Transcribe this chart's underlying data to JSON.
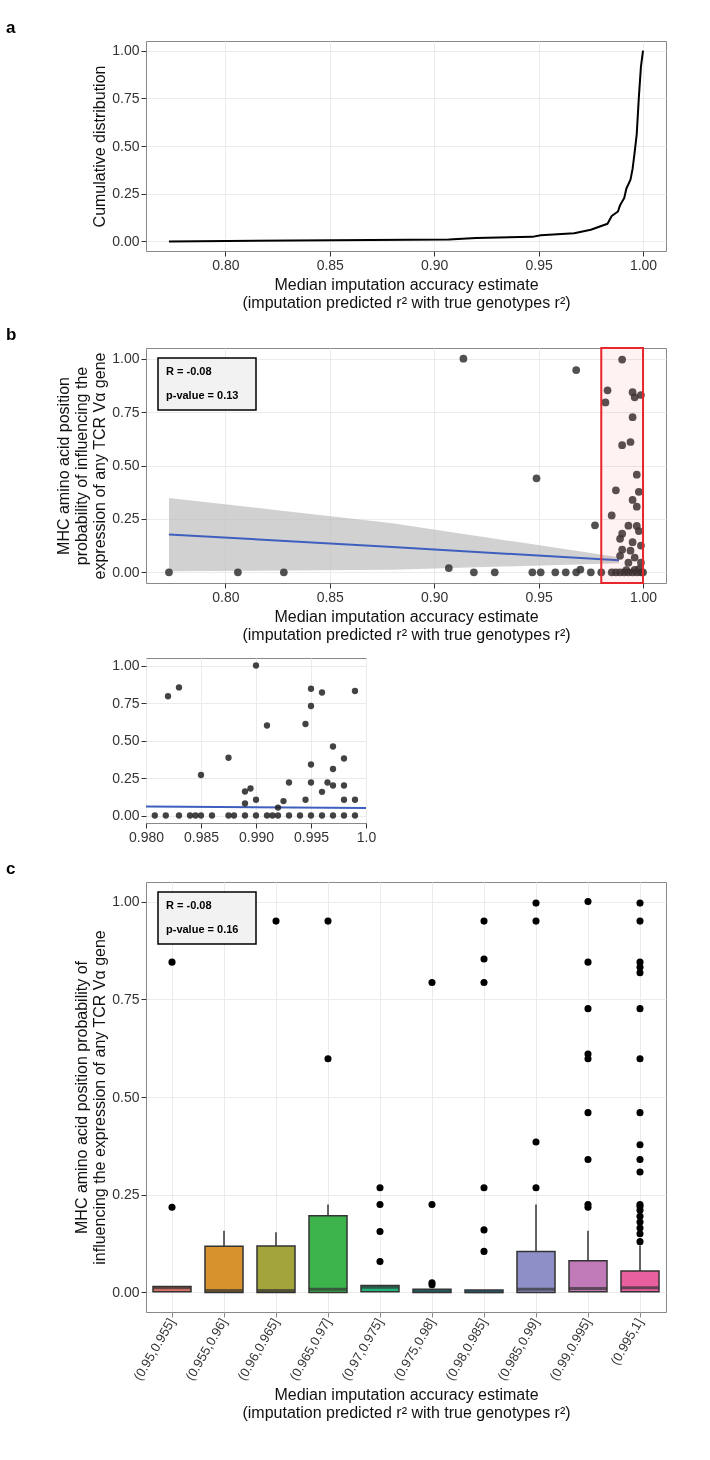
{
  "chart_data": [
    {
      "type": "line",
      "xlabel": "Median imputation accuracy estimate\n(imputation predicted r² with true genotypes r²)",
      "ylabel": "Cumulative distribution",
      "annotations": [
        "a"
      ],
      "grid": true,
      "marker": "none",
      "line_style": "solid",
      "xlim": [
        0.762,
        1.011
      ],
      "ylim": [
        -0.05,
        1.05
      ],
      "xticks": [
        {
          "value": 0.8,
          "label": "0.80"
        },
        {
          "value": 0.85,
          "label": "0.85"
        },
        {
          "value": 0.9,
          "label": "0.90"
        },
        {
          "value": 0.95,
          "label": "0.95"
        },
        {
          "value": 1.0,
          "label": "1.00"
        }
      ],
      "yticks": [
        {
          "value": 0,
          "label": "0.00"
        },
        {
          "value": 0.25,
          "label": "0.25"
        },
        {
          "value": 0.5,
          "label": "0.50"
        },
        {
          "value": 0.75,
          "label": "0.75"
        },
        {
          "value": 1.0,
          "label": "1.00"
        }
      ],
      "series": [
        {
          "color": "#000000",
          "x": [
            0.773,
            0.907,
            0.92,
            0.947,
            0.951,
            0.967,
            0.975,
            0.983,
            0.985,
            0.988,
            0.989,
            0.991,
            0.992,
            0.994,
            0.995,
            0.996,
            0.997,
            0.998,
            0.999,
            1.0
          ],
          "values": [
            0.0,
            0.01,
            0.018,
            0.024,
            0.032,
            0.043,
            0.061,
            0.093,
            0.133,
            0.157,
            0.19,
            0.228,
            0.276,
            0.324,
            0.38,
            0.468,
            0.564,
            0.756,
            0.916,
            1.0
          ]
        }
      ]
    },
    {
      "type": "scatter",
      "xlabel": "Median imputation accuracy estimate\n(imputation predicted r² with true genotypes r²)",
      "ylabel": "MHC amino acid position\nprobability of influencing the\nexpression of any TCR Vα gene",
      "annotations": [
        "b",
        "R = -0.08",
        "p-value = 0.13"
      ],
      "grid": true,
      "xlim": [
        0.762,
        1.011
      ],
      "ylim": [
        -0.05,
        1.05
      ],
      "xticks": [
        {
          "value": 0.8,
          "label": "0.80"
        },
        {
          "value": 0.85,
          "label": "0.85"
        },
        {
          "value": 0.9,
          "label": "0.90"
        },
        {
          "value": 0.95,
          "label": "0.95"
        },
        {
          "value": 1.0,
          "label": "1.00"
        }
      ],
      "yticks": [
        {
          "value": 0,
          "label": "0.00"
        },
        {
          "value": 0.25,
          "label": "0.25"
        },
        {
          "value": 0.5,
          "label": "0.50"
        },
        {
          "value": 0.75,
          "label": "0.75"
        },
        {
          "value": 1.0,
          "label": "1.00"
        }
      ],
      "bands": [
        {
          "axis": "x",
          "from": 0.98,
          "to": 1.0,
          "color": "#e8262b"
        }
      ],
      "series": [
        {
          "type": "line",
          "marker": "none",
          "color": "#3f5fbf",
          "x": [
            0.773,
            0.88,
            0.9885
          ],
          "values": [
            0.177,
            0.119,
            0.056
          ],
          "lower": [
            0.005,
            0.012,
            0.043
          ],
          "upper": [
            0.348,
            0.23,
            0.07
          ]
        },
        {
          "type": "scatter",
          "marker": "circle",
          "color": "#333333",
          "x": [
            0.773,
            0.806,
            0.828,
            0.907,
            0.914,
            0.919,
            0.929,
            0.947,
            0.951,
            0.949,
            0.958,
            0.963,
            0.968,
            0.968,
            0.97,
            0.975,
            0.977,
            0.98,
            0.99,
            0.983,
            0.982,
            0.995,
            0.996,
            0.999,
            0.995,
            0.99,
            0.994,
            0.997,
            0.987,
            0.998,
            0.995,
            0.997,
            0.985,
            0.993,
            0.997,
            0.99,
            0.989,
            0.995,
            0.998,
            0.99,
            0.994,
            0.999,
            0.989,
            0.996,
            0.993,
            0.999,
            0.985,
            0.987,
            0.989,
            0.991,
            0.993,
            0.995,
            0.997,
            0.999,
            1.0,
            0.992,
            0.996,
            0.998
          ],
          "values": [
            0.0,
            0.0,
            0.0,
            0.02,
            1.0,
            0.0,
            0.0,
            0.0,
            0.0,
            0.44,
            0.0,
            0.0,
            0.947,
            0.0,
            0.013,
            0.0,
            0.22,
            0.0,
            0.996,
            0.852,
            0.795,
            0.843,
            0.819,
            0.83,
            0.726,
            0.595,
            0.61,
            0.457,
            0.384,
            0.377,
            0.339,
            0.307,
            0.266,
            0.218,
            0.217,
            0.181,
            0.157,
            0.141,
            0.193,
            0.106,
            0.101,
            0.125,
            0.077,
            0.069,
            0.045,
            0.045,
            0.0,
            0.0,
            0.0,
            0.0,
            0.0,
            0.0,
            0.0,
            0.0,
            0.0,
            0.01,
            0.012,
            0.015
          ]
        }
      ]
    },
    {
      "type": "scatter",
      "grid": true,
      "xlim": [
        0.98,
        1.0
      ],
      "ylim": [
        -0.05,
        1.05
      ],
      "xticks": [
        {
          "value": 0.98,
          "label": "0.980"
        },
        {
          "value": 0.985,
          "label": "0.985"
        },
        {
          "value": 0.99,
          "label": "0.990"
        },
        {
          "value": 0.995,
          "label": "0.995"
        },
        {
          "value": 1.0,
          "label": "1.0"
        }
      ],
      "yticks": [
        {
          "value": 0,
          "label": "0.00"
        },
        {
          "value": 0.25,
          "label": "0.25"
        },
        {
          "value": 0.5,
          "label": "0.50"
        },
        {
          "value": 0.75,
          "label": "0.75"
        },
        {
          "value": 1.0,
          "label": "1.00"
        }
      ],
      "series": [
        {
          "type": "line",
          "marker": "none",
          "color": "#3f5fbf",
          "x": [
            0.98,
            1.0
          ],
          "values": [
            0.06,
            0.05
          ]
        },
        {
          "type": "scatter",
          "marker": "circle",
          "color": "#222222",
          "x": [
            0.982,
            0.983,
            0.985,
            0.9875,
            0.989,
            0.9895,
            0.989,
            0.99,
            0.99,
            0.991,
            0.992,
            0.9925,
            0.993,
            0.9945,
            0.9945,
            0.995,
            0.995,
            0.995,
            0.995,
            0.996,
            0.996,
            0.997,
            0.997,
            0.9965,
            0.998,
            0.998,
            0.999,
            0.997,
            0.999,
            0.998,
            0.9808,
            0.9818,
            0.983,
            0.984,
            0.9845,
            0.985,
            0.986,
            0.9875,
            0.988,
            0.989,
            0.99,
            0.991,
            0.9915,
            0.992,
            0.993,
            0.994,
            0.995,
            0.996,
            0.997,
            0.998,
            0.999
          ],
          "values": [
            0.795,
            0.854,
            0.27,
            0.385,
            0.16,
            0.18,
            0.08,
            1.0,
            0.105,
            0.6,
            0.053,
            0.096,
            0.22,
            0.61,
            0.105,
            0.845,
            0.73,
            0.34,
            0.22,
            0.82,
            0.158,
            0.46,
            0.31,
            0.22,
            0.38,
            0.2,
            0.83,
            0.2,
            0.105,
            0.105,
            0.0,
            0.0,
            0.0,
            0.0,
            0.0,
            0.0,
            0.0,
            0.0,
            0.0,
            0.0,
            0.0,
            0.0,
            0.0,
            0.0,
            0.0,
            0.0,
            0.0,
            0.0,
            0.0,
            0.0,
            0.0
          ]
        }
      ]
    },
    {
      "type": "box",
      "xlabel": "Median imputation accuracy estimate\n(imputation predicted r² with true genotypes r²)",
      "ylabel": "MHC amino acid  position probability of\ninfluencing the expression of any TCR Vα gene",
      "annotations": [
        "c",
        "R = -0.08",
        "p-value = 0.16"
      ],
      "grid": true,
      "ylim": [
        -0.05,
        1.05
      ],
      "yticks": [
        {
          "value": 0,
          "label": "0.00"
        },
        {
          "value": 0.25,
          "label": "0.25"
        },
        {
          "value": 0.5,
          "label": "0.50"
        },
        {
          "value": 0.75,
          "label": "0.75"
        },
        {
          "value": 1.0,
          "label": "1.00"
        }
      ],
      "categories": [
        "(0.95,0.955]",
        "(0.955,0.96]",
        "(0.96,0.965]",
        "(0.965,0.97]",
        "(0.97,0.975]",
        "(0.975,0.98]",
        "(0.98,0.985]",
        "(0.985,0.99]",
        "(0.99,0.995]",
        "(0.995,1]"
      ],
      "colors": [
        "#e0736b",
        "#d6922b",
        "#a3a53a",
        "#3cb44b",
        "#1fb57c",
        "#00bfc4",
        "#00b0f6",
        "#8f8fc8",
        "#c07ab8",
        "#e8609f"
      ],
      "boxes": [
        {
          "low": 0.002,
          "q1": 0.002,
          "median": 0.012,
          "q3": 0.015,
          "high": 0.015,
          "outliers": [
            0.218,
            0.845
          ]
        },
        {
          "low": 0.0,
          "q1": 0.0,
          "median": 0.005,
          "q3": 0.118,
          "high": 0.158
        },
        {
          "low": 0.0,
          "q1": 0.0,
          "median": 0.005,
          "q3": 0.119,
          "high": 0.154,
          "outliers": [
            0.95
          ]
        },
        {
          "low": 0.0,
          "q1": 0.0,
          "median": 0.008,
          "q3": 0.196,
          "high": 0.225,
          "outliers": [
            0.598,
            0.95
          ]
        },
        {
          "low": 0.002,
          "q1": 0.002,
          "median": 0.013,
          "q3": 0.018,
          "high": 0.018,
          "outliers": [
            0.079,
            0.156,
            0.225,
            0.268
          ]
        },
        {
          "low": 0.0,
          "q1": 0.0,
          "median": 0.003,
          "q3": 0.008,
          "high": 0.008,
          "outliers": [
            0.02,
            0.025,
            0.225,
            0.793
          ]
        },
        {
          "low": 0.0,
          "q1": 0.0,
          "median": 0.002,
          "q3": 0.006,
          "high": 0.006,
          "outliers": [
            0.105,
            0.16,
            0.268,
            0.793,
            0.853,
            0.95
          ]
        },
        {
          "low": 0.0,
          "q1": 0.0,
          "median": 0.008,
          "q3": 0.105,
          "high": 0.225,
          "outliers": [
            0.268,
            0.385,
            0.95,
            0.996
          ]
        },
        {
          "low": 0.002,
          "q1": 0.002,
          "median": 0.01,
          "q3": 0.081,
          "high": 0.158,
          "outliers": [
            0.218,
            0.225,
            0.34,
            0.46,
            0.598,
            0.61,
            0.726,
            0.845,
            1.0
          ]
        },
        {
          "low": 0.002,
          "q1": 0.002,
          "median": 0.012,
          "q3": 0.055,
          "high": 0.12,
          "outliers": [
            0.13,
            0.15,
            0.165,
            0.18,
            0.195,
            0.21,
            0.22,
            0.225,
            0.308,
            0.34,
            0.378,
            0.46,
            0.598,
            0.726,
            0.818,
            0.832,
            0.845,
            0.95,
            0.996
          ]
        }
      ]
    }
  ]
}
